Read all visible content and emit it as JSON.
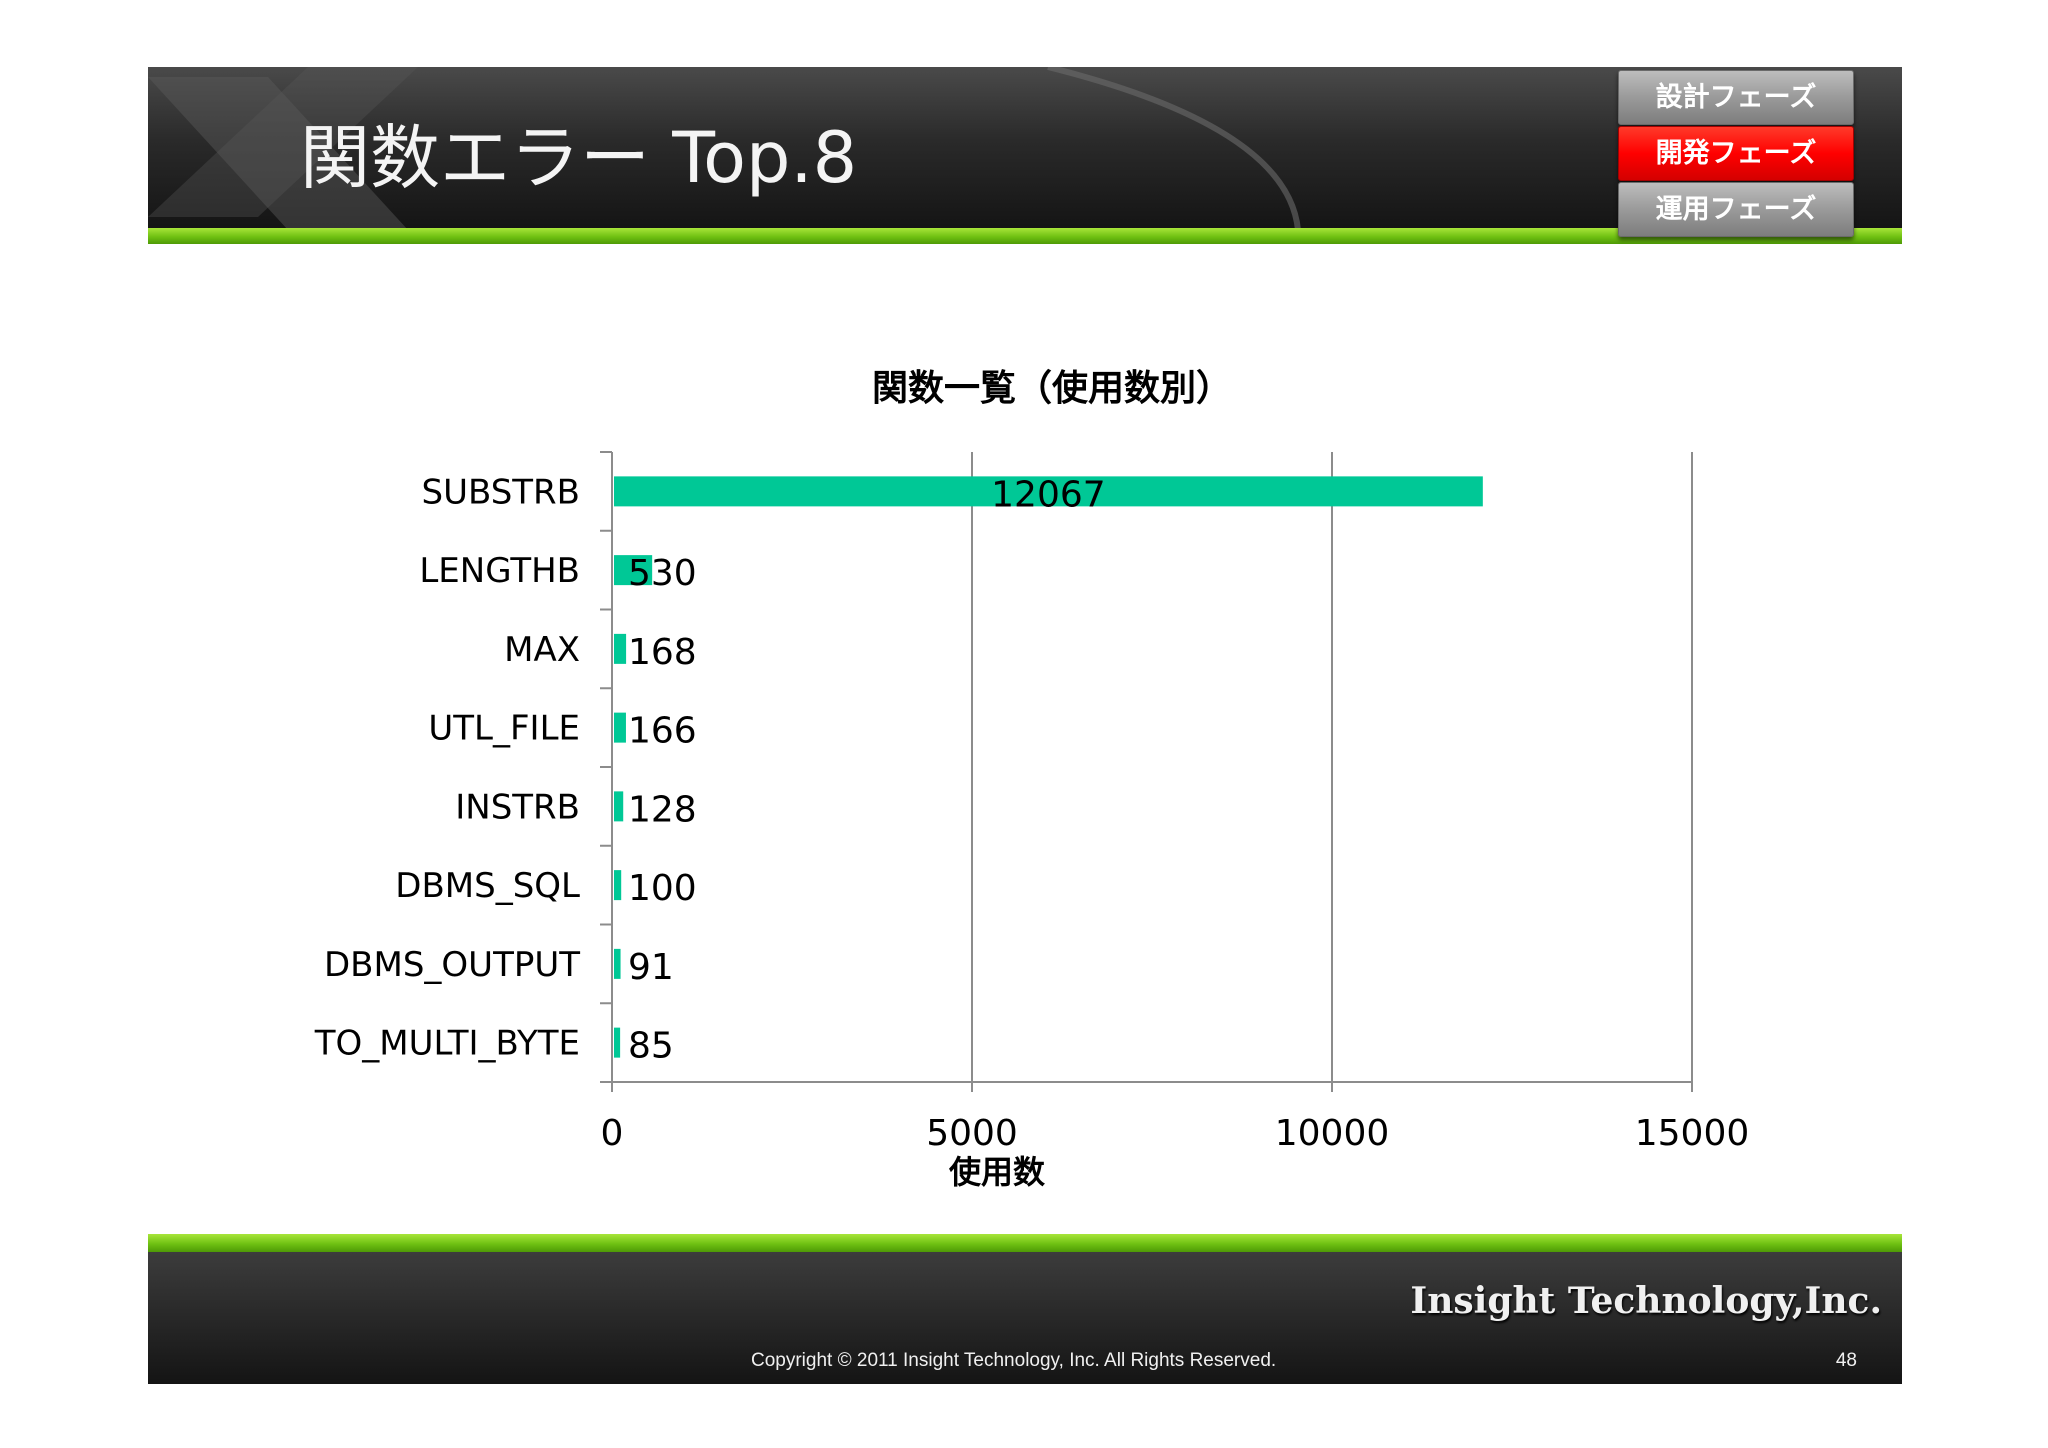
{
  "header": {
    "title": "関数エラー Top.8"
  },
  "phase_nav": {
    "items": [
      {
        "label": "設計フェーズ",
        "active": false
      },
      {
        "label": "開発フェーズ",
        "active": true
      },
      {
        "label": "運用フェーズ",
        "active": false
      }
    ],
    "active_color": "#ff0000",
    "inactive_color": "#9a9a9a"
  },
  "chart_data": {
    "type": "bar",
    "orientation": "horizontal",
    "title": "関数一覧（使用数別）",
    "xlabel": "使用数",
    "ylabel": "",
    "categories": [
      "SUBSTRB",
      "LENGTHB",
      "MAX",
      "UTL_FILE",
      "INSTRB",
      "DBMS_SQL",
      "DBMS_OUTPUT",
      "TO_MULTI_BYTE"
    ],
    "values": [
      12067,
      530,
      168,
      166,
      128,
      100,
      91,
      85
    ],
    "data_labels": [
      "12067",
      "530",
      "168",
      "166",
      "128",
      "100",
      "91",
      "85"
    ],
    "xlim": [
      0,
      15000
    ],
    "xticks": [
      0,
      5000,
      10000,
      15000
    ],
    "xtick_labels": [
      "0",
      "5000",
      "10000",
      "15000"
    ],
    "grid": "vertical",
    "legend": "none",
    "bar_color": "#00c896"
  },
  "footer": {
    "logo_text": "Insight Technology,Inc.",
    "copyright": "Copyright © 2011 Insight Technology, Inc. All Rights Reserved.",
    "page_number": "48"
  }
}
